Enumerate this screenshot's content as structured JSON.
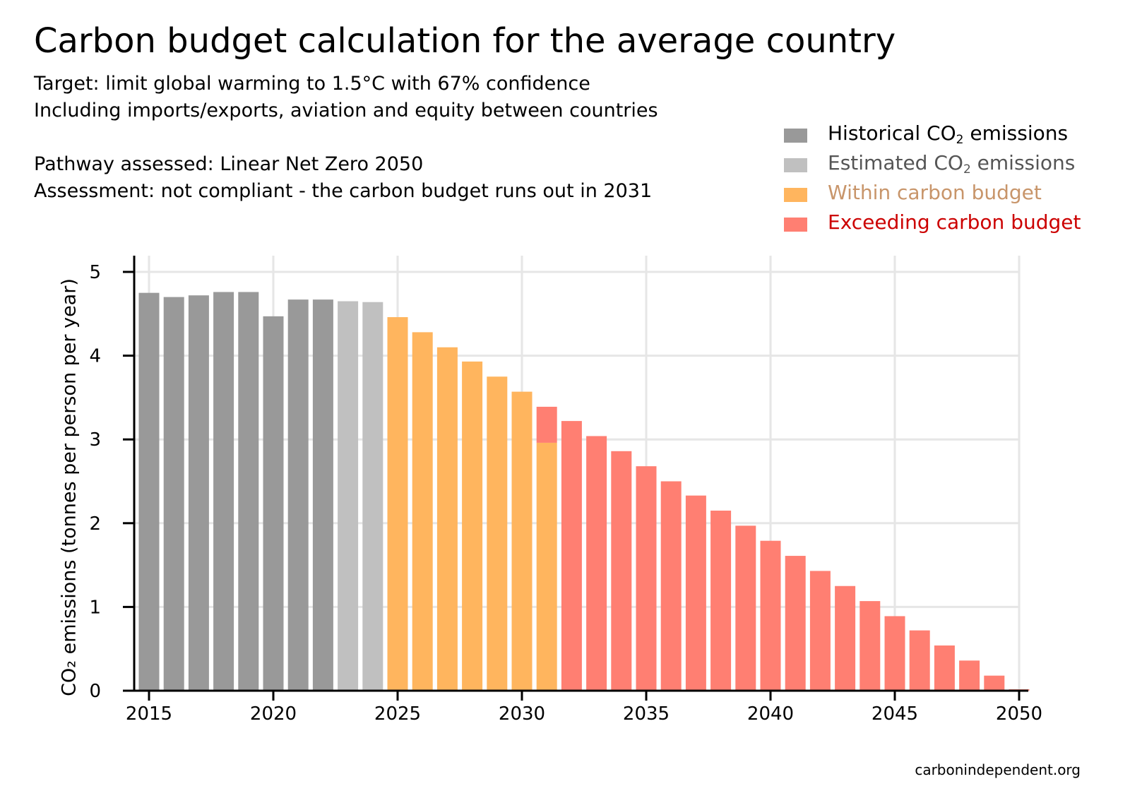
{
  "header": {
    "title": "Carbon budget calculation for the average country",
    "subtitle_lines": [
      "Target: limit global warming to 1.5°C with 67% confidence",
      "Including imports/exports, aviation and equity between countries",
      "Pathway assessed: Linear Net Zero 2050",
      "Assessment: not compliant - the carbon budget runs out in 2031"
    ]
  },
  "legend": {
    "items": [
      {
        "pre": "Historical CO",
        "sub": "2",
        "post": " emissions",
        "swatch": "#999999",
        "text_color": "#000000"
      },
      {
        "pre": "Estimated CO",
        "sub": "2",
        "post": " emissions",
        "swatch": "#c0c0c0",
        "text_color": "#555555"
      },
      {
        "pre": "Within carbon budget",
        "sub": "",
        "post": "",
        "swatch": "#ffb55e",
        "text_color": "#c8956a"
      },
      {
        "pre": "Exceeding carbon budget",
        "sub": "",
        "post": "",
        "swatch": "#ff7f72",
        "text_color": "#cc0000"
      }
    ]
  },
  "chart_data": {
    "type": "bar",
    "ylabel": "CO₂ emissions (tonnes per person per year)",
    "xlabel": "",
    "ylim": [
      0,
      5.2
    ],
    "xlim": [
      2014.5,
      2050.3
    ],
    "yticks": [
      "0",
      "1",
      "2",
      "3",
      "4",
      "5"
    ],
    "xticks": [
      "2015",
      "2020",
      "2025",
      "2030",
      "2035",
      "2040",
      "2045",
      "2050"
    ],
    "grid": true,
    "legend_position": "top-right",
    "colors": {
      "historical": "#999999",
      "estimated": "#c0c0c0",
      "within": "#ffb55e",
      "exceeding": "#ff7f72"
    },
    "bars": [
      {
        "year": 2015,
        "within": 4.75,
        "exceeding": 0,
        "kind": "historical"
      },
      {
        "year": 2016,
        "within": 4.7,
        "exceeding": 0,
        "kind": "historical"
      },
      {
        "year": 2017,
        "within": 4.72,
        "exceeding": 0,
        "kind": "historical"
      },
      {
        "year": 2018,
        "within": 4.76,
        "exceeding": 0,
        "kind": "historical"
      },
      {
        "year": 2019,
        "within": 4.76,
        "exceeding": 0,
        "kind": "historical"
      },
      {
        "year": 2020,
        "within": 4.47,
        "exceeding": 0,
        "kind": "historical"
      },
      {
        "year": 2021,
        "within": 4.67,
        "exceeding": 0,
        "kind": "historical"
      },
      {
        "year": 2022,
        "within": 4.67,
        "exceeding": 0,
        "kind": "historical"
      },
      {
        "year": 2023,
        "within": 4.65,
        "exceeding": 0,
        "kind": "estimated"
      },
      {
        "year": 2024,
        "within": 4.64,
        "exceeding": 0,
        "kind": "estimated"
      },
      {
        "year": 2025,
        "within": 4.46,
        "exceeding": 0,
        "kind": "pathway"
      },
      {
        "year": 2026,
        "within": 4.28,
        "exceeding": 0,
        "kind": "pathway"
      },
      {
        "year": 2027,
        "within": 4.1,
        "exceeding": 0,
        "kind": "pathway"
      },
      {
        "year": 2028,
        "within": 3.93,
        "exceeding": 0,
        "kind": "pathway"
      },
      {
        "year": 2029,
        "within": 3.75,
        "exceeding": 0,
        "kind": "pathway"
      },
      {
        "year": 2030,
        "within": 3.57,
        "exceeding": 0,
        "kind": "pathway"
      },
      {
        "year": 2031,
        "within": 2.96,
        "exceeding": 0.43,
        "kind": "pathway"
      },
      {
        "year": 2032,
        "within": 0,
        "exceeding": 3.22,
        "kind": "pathway"
      },
      {
        "year": 2033,
        "within": 0,
        "exceeding": 3.04,
        "kind": "pathway"
      },
      {
        "year": 2034,
        "within": 0,
        "exceeding": 2.86,
        "kind": "pathway"
      },
      {
        "year": 2035,
        "within": 0,
        "exceeding": 2.68,
        "kind": "pathway"
      },
      {
        "year": 2036,
        "within": 0,
        "exceeding": 2.5,
        "kind": "pathway"
      },
      {
        "year": 2037,
        "within": 0,
        "exceeding": 2.33,
        "kind": "pathway"
      },
      {
        "year": 2038,
        "within": 0,
        "exceeding": 2.15,
        "kind": "pathway"
      },
      {
        "year": 2039,
        "within": 0,
        "exceeding": 1.97,
        "kind": "pathway"
      },
      {
        "year": 2040,
        "within": 0,
        "exceeding": 1.79,
        "kind": "pathway"
      },
      {
        "year": 2041,
        "within": 0,
        "exceeding": 1.61,
        "kind": "pathway"
      },
      {
        "year": 2042,
        "within": 0,
        "exceeding": 1.43,
        "kind": "pathway"
      },
      {
        "year": 2043,
        "within": 0,
        "exceeding": 1.25,
        "kind": "pathway"
      },
      {
        "year": 2044,
        "within": 0,
        "exceeding": 1.07,
        "kind": "pathway"
      },
      {
        "year": 2045,
        "within": 0,
        "exceeding": 0.89,
        "kind": "pathway"
      },
      {
        "year": 2046,
        "within": 0,
        "exceeding": 0.72,
        "kind": "pathway"
      },
      {
        "year": 2047,
        "within": 0,
        "exceeding": 0.54,
        "kind": "pathway"
      },
      {
        "year": 2048,
        "within": 0,
        "exceeding": 0.36,
        "kind": "pathway"
      },
      {
        "year": 2049,
        "within": 0,
        "exceeding": 0.18,
        "kind": "pathway"
      },
      {
        "year": 2050,
        "within": 0,
        "exceeding": 0.0,
        "kind": "pathway"
      }
    ]
  },
  "footer": {
    "source": "carbonindependent.org"
  }
}
